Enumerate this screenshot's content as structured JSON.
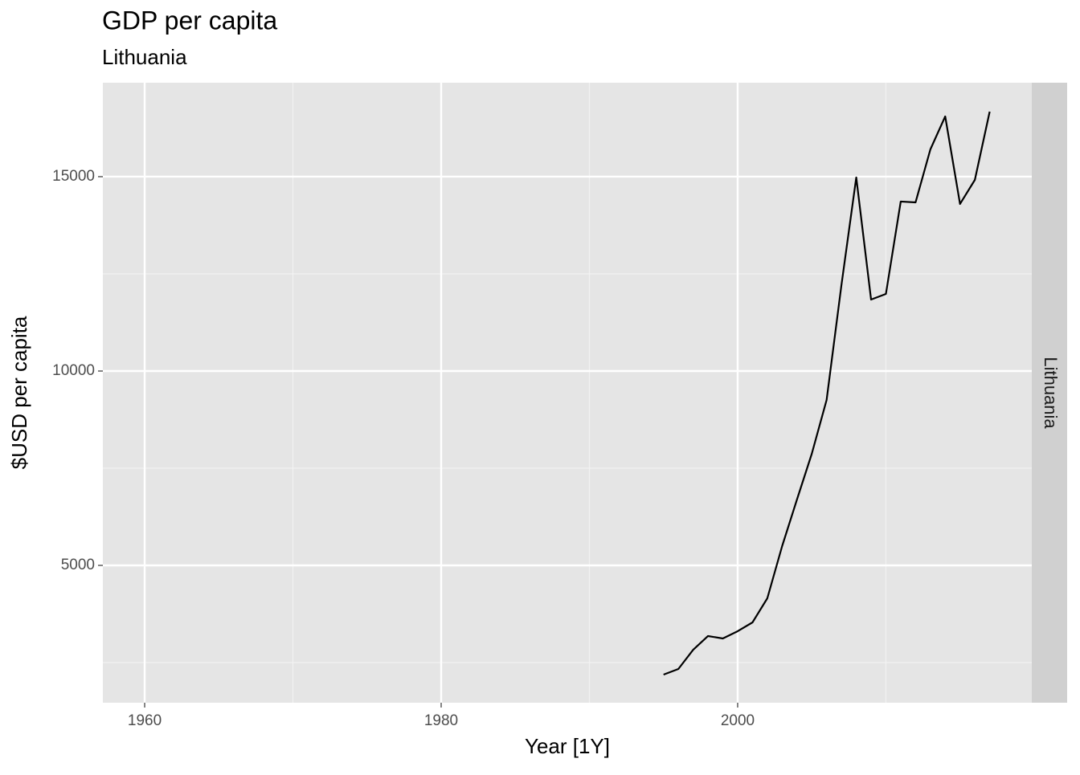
{
  "chart_data": {
    "type": "line",
    "title": "GDP per capita",
    "subtitle": "Lithuania",
    "facet": "Lithuania",
    "xlabel": "Year [1Y]",
    "ylabel": "$USD per capita",
    "x": [
      1995,
      1996,
      1997,
      1998,
      1999,
      2000,
      2001,
      2002,
      2003,
      2004,
      2005,
      2006,
      2007,
      2008,
      2009,
      2010,
      2011,
      2012,
      2013,
      2014,
      2015,
      2016,
      2017
    ],
    "series": [
      {
        "color": "#000000",
        "values": [
          2190,
          2335,
          2830,
          3182,
          3120,
          3306,
          3533,
          4153,
          5496,
          6694,
          7872,
          9256,
          12211,
          14979,
          11839,
          11983,
          14360,
          14339,
          15702,
          16550,
          14298,
          14917,
          16673
        ]
      }
    ],
    "xlim": [
      1957.18,
      2019.84
    ],
    "xticks": [
      1960,
      1980,
      2000
    ],
    "ylim": [
      1467,
      17417
    ],
    "yticks": [
      5000,
      10000,
      15000
    ],
    "grid": true
  }
}
